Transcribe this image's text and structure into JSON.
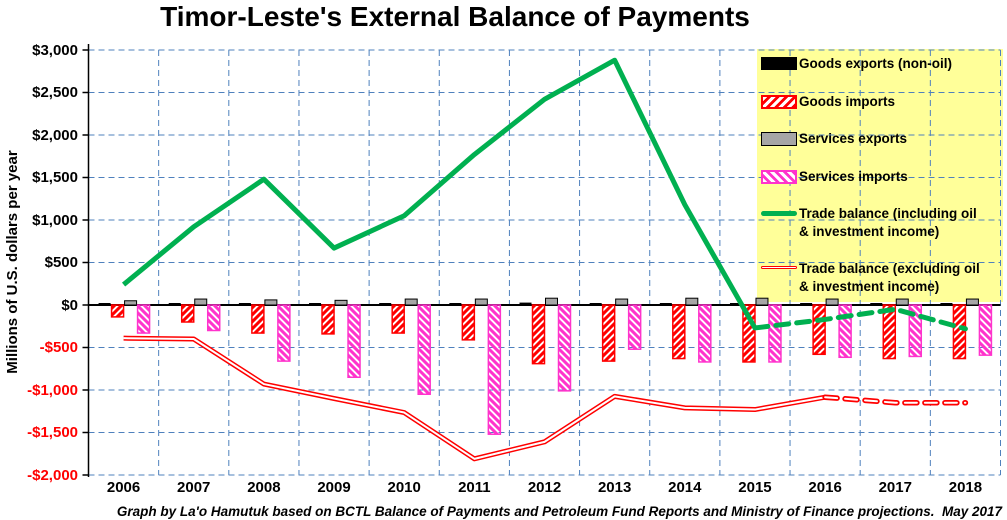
{
  "chart_data": {
    "type": "combo",
    "title": "Timor-Leste's External Balance of Payments",
    "ylabel": "Millions of U.S. dollars per year",
    "footnote": "Graph by La'o Hamutuk based on BCTL Balance of Payments and Petroleum Fund Reports and Ministry of Finance projections.  May 2017",
    "ylim": [
      -2000,
      3000
    ],
    "ytick_step": 500,
    "ytick_labels": [
      "$3,000",
      "$2,500",
      "$2,000",
      "$1,500",
      "$1,000",
      "$500",
      "$0",
      "-$500",
      "-$1,000",
      "-$1,500",
      "-$2,000"
    ],
    "categories": [
      "2006",
      "2007",
      "2008",
      "2009",
      "2010",
      "2011",
      "2012",
      "2013",
      "2014",
      "2015",
      "2016",
      "2017",
      "2018"
    ],
    "grid": true,
    "legend_position": "top-right",
    "bar_series": [
      {
        "name": "Goods exports (non-oil)",
        "style": "solid-black",
        "values": [
          15,
          15,
          15,
          20,
          25,
          30,
          40,
          30,
          25,
          25,
          20,
          20,
          20
        ]
      },
      {
        "name": "Goods imports",
        "style": "hatched-red",
        "values": [
          -140,
          -200,
          -330,
          -340,
          -330,
          -410,
          -690,
          -660,
          -630,
          -670,
          -580,
          -630,
          -630
        ]
      },
      {
        "name": "Services exports",
        "style": "solid-gray",
        "values": [
          50,
          70,
          60,
          55,
          70,
          70,
          80,
          70,
          80,
          80,
          70,
          70,
          70
        ]
      },
      {
        "name": "Services imports",
        "style": "hatched-magenta",
        "values": [
          -330,
          -300,
          -660,
          -850,
          -1050,
          -1520,
          -1010,
          -520,
          -670,
          -670,
          -615,
          -605,
          -590
        ]
      }
    ],
    "line_series": [
      {
        "name": "Trade balance (including oil & investment income)",
        "style": "thick-solid",
        "color_key": "green",
        "values": [
          240,
          920,
          1480,
          670,
          1050,
          1770,
          2420,
          2880,
          1180,
          -270,
          -170,
          -50,
          -280
        ],
        "dashed_from": "2015",
        "dashed_from_index": 9
      },
      {
        "name": "Trade balance (excluding oil & investment income)",
        "style": "double-outline",
        "color_key": "red",
        "values": [
          -390,
          -400,
          -930,
          -1100,
          -1265,
          -1810,
          -1610,
          -1075,
          -1210,
          -1230,
          -1085,
          -1150,
          -1150
        ],
        "dashed_from": "2016",
        "dashed_from_index": 10
      }
    ],
    "colors": {
      "green": "#00B050",
      "red": "#FF0000",
      "magenta": "#FF33CC",
      "gray": "#A6A6A6",
      "bar_black": "#000000",
      "gridline": "#4F81BD",
      "axis": "#000000",
      "legend_bg": "#FFFF99",
      "negative_tick": "#FF0000"
    }
  },
  "legend": {
    "items": [
      {
        "swatch": "bar-black",
        "label": "Goods exports (non-oil)"
      },
      {
        "swatch": "bar-red-hatch",
        "label": "Goods imports"
      },
      {
        "swatch": "bar-gray",
        "label": "Services exports"
      },
      {
        "swatch": "bar-magenta-hatch",
        "label": "Services imports"
      },
      {
        "swatch": "line-green",
        "label": "Trade balance (including oil\n& investment income)"
      },
      {
        "swatch": "line-red",
        "label": "Trade balance (excluding oil\n& investment income)"
      }
    ]
  }
}
